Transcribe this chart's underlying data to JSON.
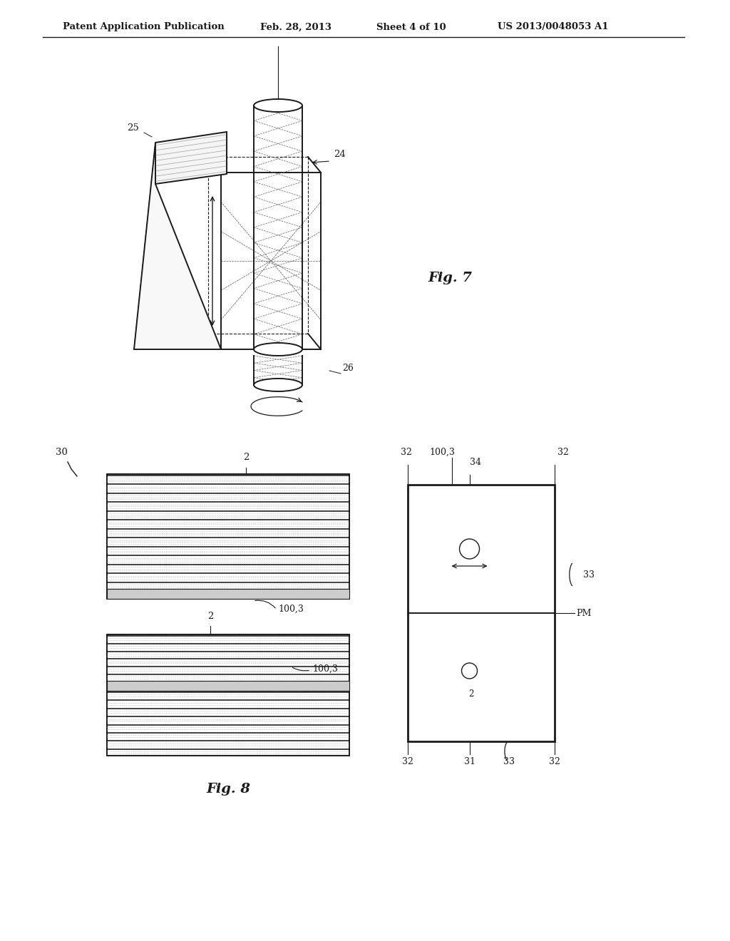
{
  "background_color": "#ffffff",
  "header_text": "Patent Application Publication",
  "header_date": "Feb. 28, 2013",
  "header_sheet": "Sheet 4 of 10",
  "header_patent": "US 2013/0048053 A1",
  "fig7_label": "Fig. 7",
  "fig8_label": "Fig. 8"
}
